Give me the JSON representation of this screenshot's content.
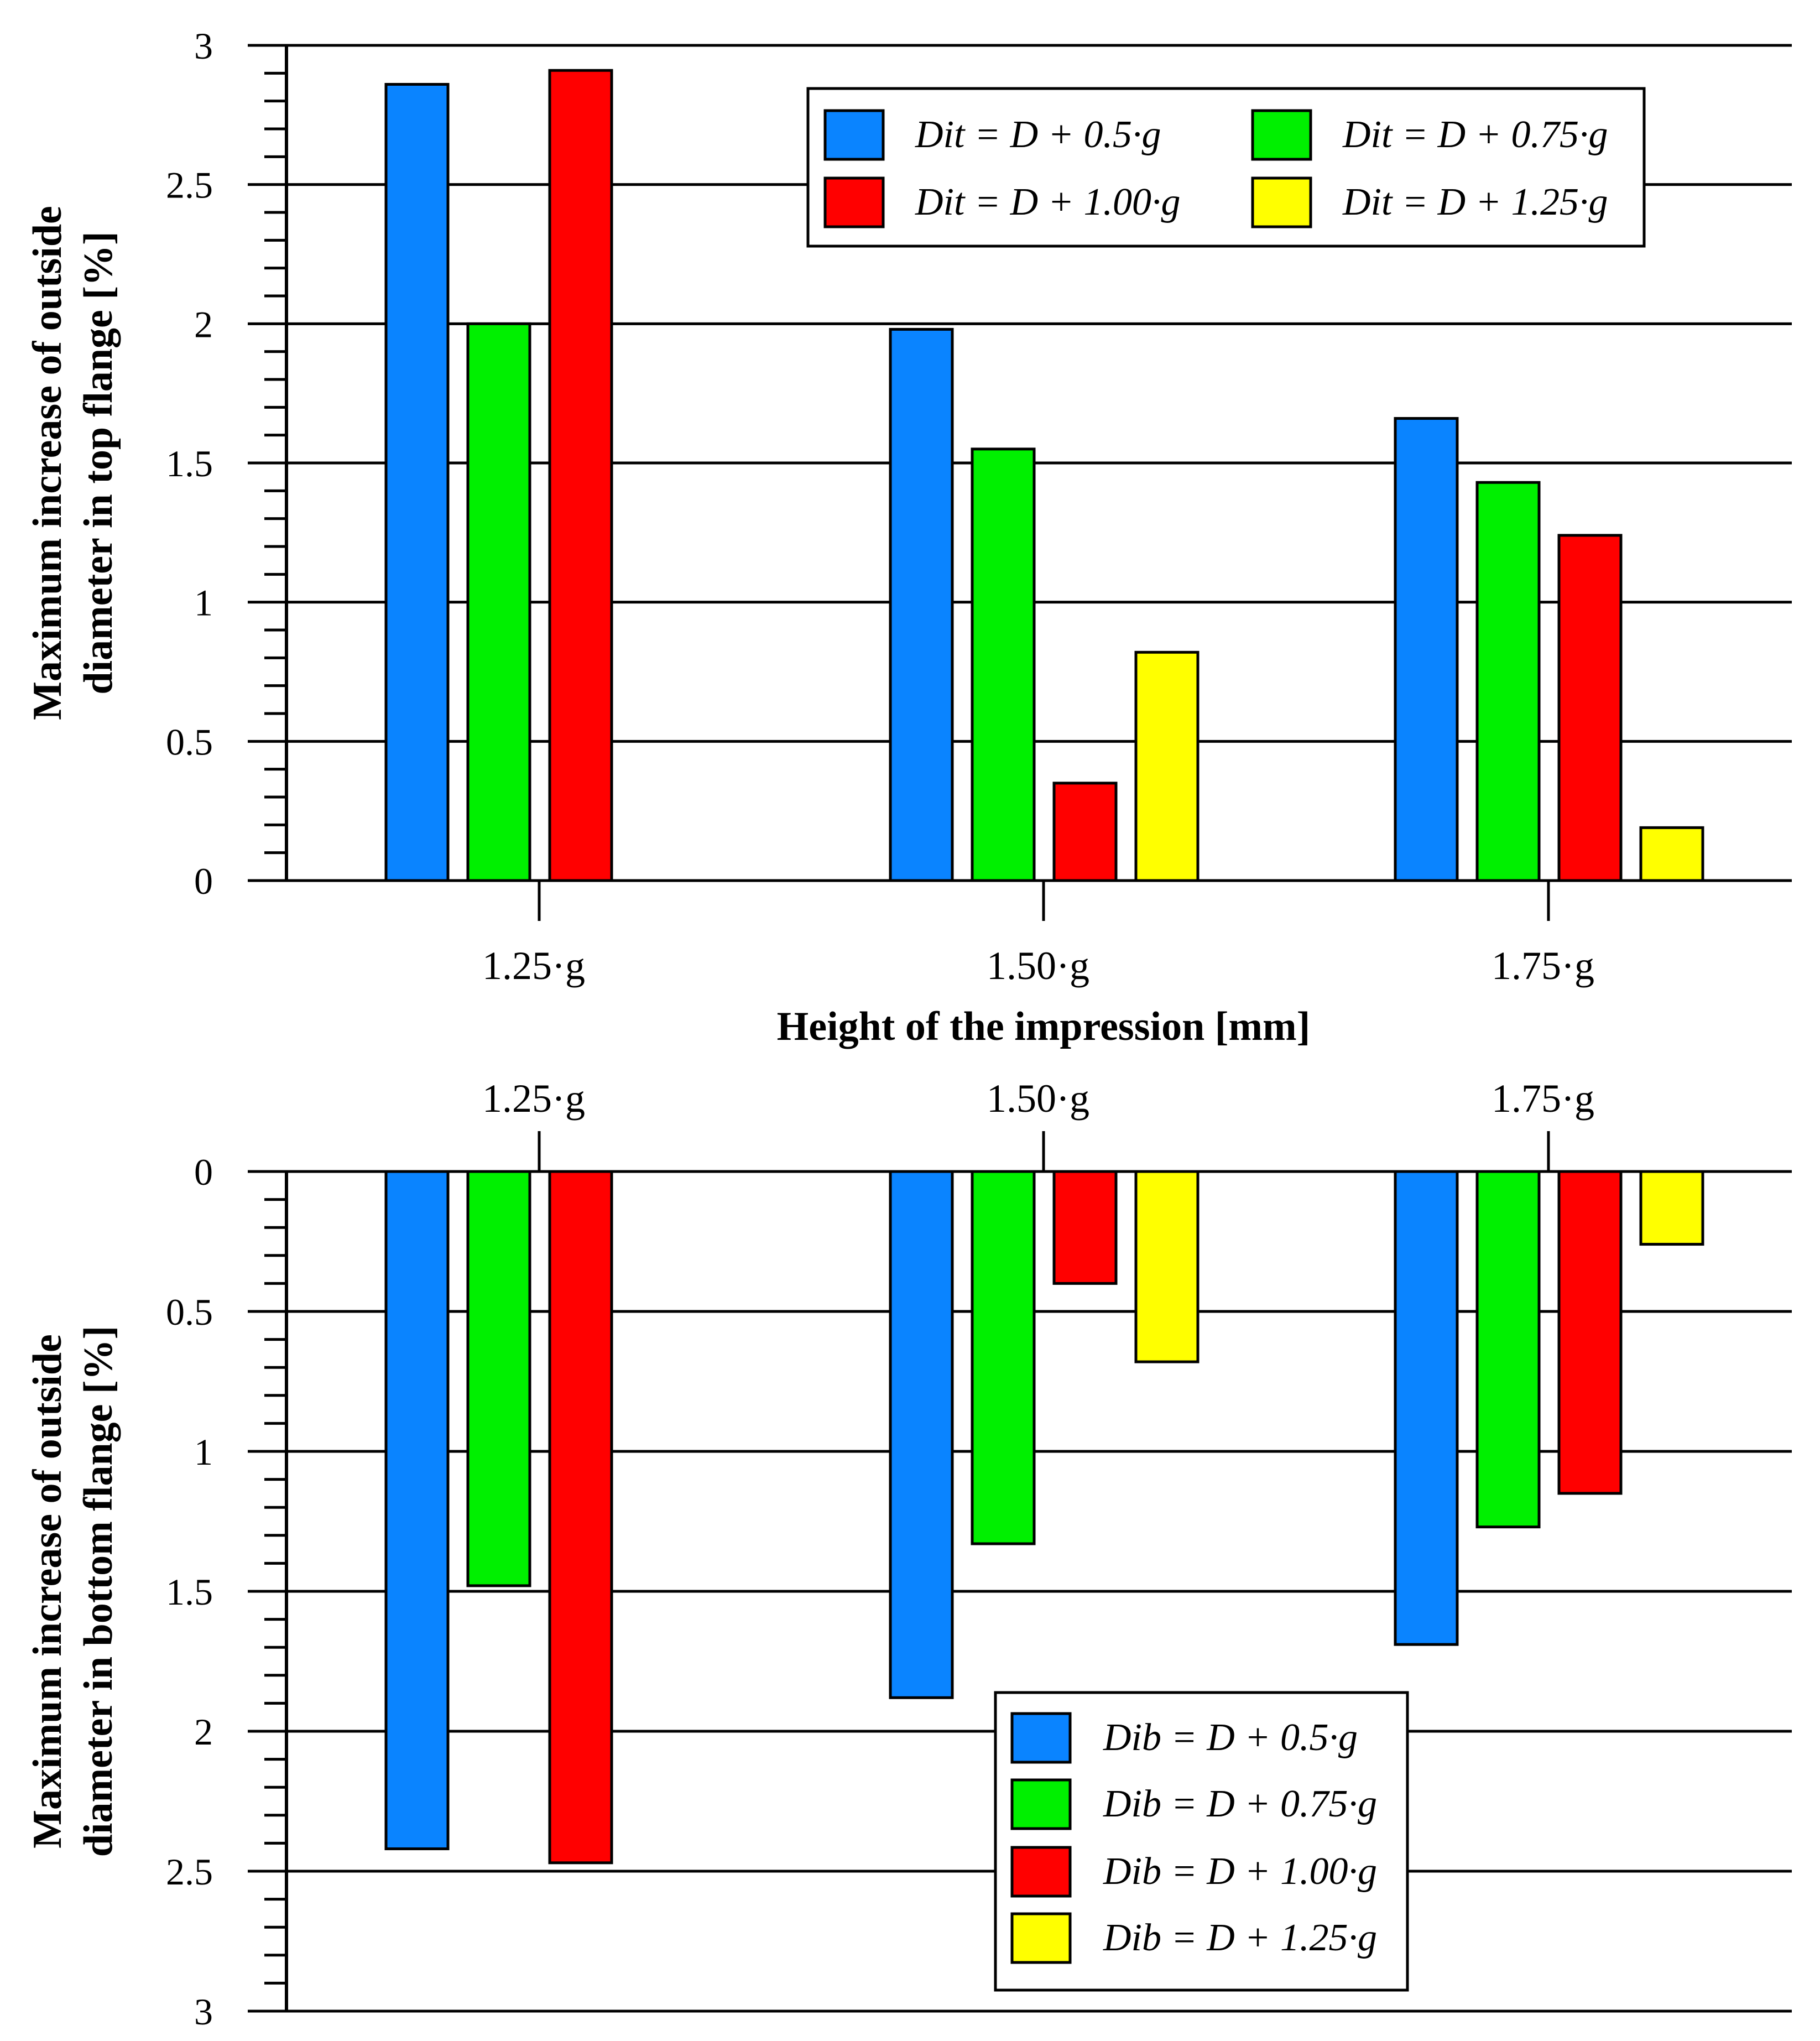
{
  "colors": {
    "blue": "#0a84ff",
    "green": "#00f000",
    "red": "#ff0000",
    "yellow": "#ffff00",
    "axis": "#000000"
  },
  "chart_data": [
    {
      "type": "bar",
      "categories": [
        "1.25·g",
        "1.50·g",
        "1.75·g"
      ],
      "xlabel": "Height of the impression [mm]",
      "ylabel": [
        "Maximum increase of outside",
        "diameter in top flange [%]"
      ],
      "ylim": [
        0,
        3
      ],
      "yticks": [
        "0",
        "0.5",
        "1",
        "1.5",
        "2",
        "2.5",
        "3"
      ],
      "grid": true,
      "legend_position": "top-right",
      "series": [
        {
          "name": "Dit = D + 0.5·g",
          "color": "blue",
          "values": [
            2.86,
            1.98,
            1.66
          ]
        },
        {
          "name": "Dit = D + 0.75·g",
          "color": "green",
          "values": [
            2.0,
            1.55,
            1.43
          ]
        },
        {
          "name": "Dit = D + 1.00·g",
          "color": "red",
          "values": [
            2.91,
            0.35,
            1.24
          ]
        },
        {
          "name": "Dit = D + 1.25·g",
          "color": "yellow",
          "values": [
            null,
            0.82,
            0.19
          ]
        }
      ]
    },
    {
      "type": "bar",
      "categories": [
        "1.25·g",
        "1.50·g",
        "1.75·g"
      ],
      "ylabel": [
        "Maximum increase of outside",
        "diameter in bottom flange [%]"
      ],
      "ylim": [
        0,
        3
      ],
      "y_inverted": true,
      "yticks": [
        "0",
        "0.5",
        "1",
        "1.5",
        "2",
        "2.5",
        "3"
      ],
      "grid": true,
      "legend_position": "bottom-right",
      "series": [
        {
          "name": "Dib = D + 0.5·g",
          "color": "blue",
          "values": [
            2.42,
            1.88,
            1.69
          ]
        },
        {
          "name": "Dib = D + 0.75·g",
          "color": "green",
          "values": [
            1.48,
            1.33,
            1.27
          ]
        },
        {
          "name": "Dib = D + 1.00·g",
          "color": "red",
          "values": [
            2.47,
            0.4,
            1.15
          ]
        },
        {
          "name": "Dib = D + 1.25·g",
          "color": "yellow",
          "values": [
            null,
            0.68,
            0.26
          ]
        }
      ]
    }
  ]
}
